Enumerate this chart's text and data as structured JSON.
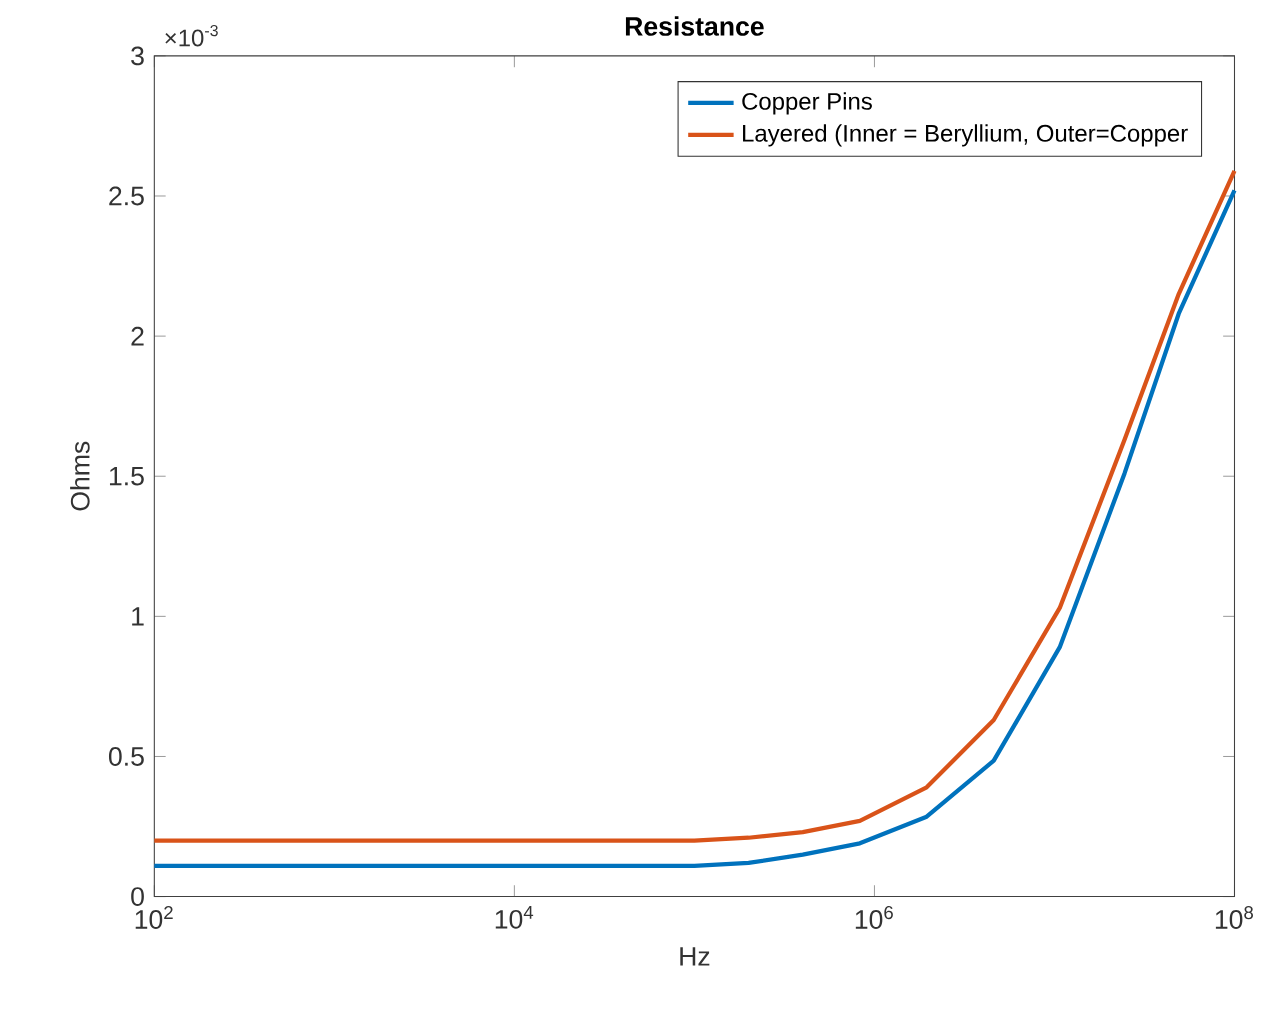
{
  "chart_data": {
    "type": "line",
    "title": "Resistance",
    "xlabel": "Hz",
    "ylabel": "Ohms",
    "log": "x",
    "xlim": [
      100,
      100000000
    ],
    "ylim": [
      0,
      3
    ],
    "xticks": [
      {
        "value": 100,
        "label": "10$^{2}$"
      },
      {
        "value": 10000,
        "label": "10$^{4}$"
      },
      {
        "value": 1000000,
        "label": "10$^{6}$"
      },
      {
        "value": 100000000,
        "label": "10$^{8}$"
      }
    ],
    "yticks": [
      0,
      0.5,
      1,
      1.5,
      2,
      2.5,
      3
    ],
    "annotations": [
      "×10$^{-3}$"
    ],
    "legend": "top right",
    "grid": false,
    "marker": "none",
    "line_style": "solid",
    "x": [
      100,
      1000,
      10000,
      100000,
      200000,
      400000,
      830000,
      1950000,
      4600000,
      10700000,
      24500000,
      49000000,
      100000000
    ],
    "series": [
      {
        "name": "Copper Pins",
        "color": "#0072bd",
        "values": [
          0.11,
          0.11,
          0.11,
          0.11,
          0.12,
          0.15,
          0.19,
          0.285,
          0.485,
          0.89,
          1.51,
          2.08,
          2.52
        ]
      },
      {
        "name": "Layered (Inner = Beryllium, Outer=Copper",
        "color": "#d95319",
        "values": [
          0.2,
          0.2,
          0.2,
          0.2,
          0.21,
          0.23,
          0.27,
          0.39,
          0.63,
          1.03,
          1.63,
          2.15,
          2.59
        ]
      }
    ]
  }
}
